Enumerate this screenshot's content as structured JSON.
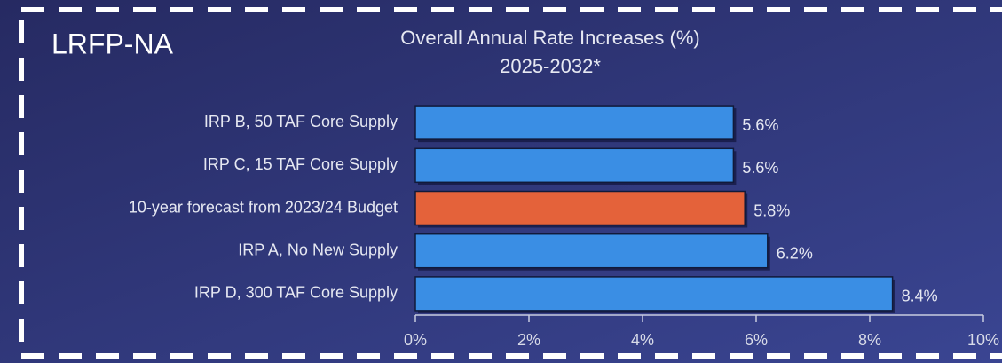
{
  "chart_data": {
    "type": "hbar",
    "annotation": "LRFP-NA",
    "title": [
      "Overall Annual Rate Increases (%)",
      "2025-2032*"
    ],
    "categories": [
      "IRP B, 50 TAF Core Supply",
      "IRP C, 15 TAF Core Supply",
      "10-year forecast from 2023/24 Budget",
      "IRP A, No New Supply",
      "IRP D, 300 TAF Core Supply"
    ],
    "values": [
      5.6,
      5.6,
      5.8,
      6.2,
      8.4
    ],
    "value_labels": [
      "5.6%",
      "5.6%",
      "5.8%",
      "6.2%",
      "8.4%"
    ],
    "colors": [
      "#3a8ee4",
      "#3a8ee4",
      "#e4623a",
      "#3a8ee4",
      "#3a8ee4"
    ],
    "xlim": [
      0,
      10
    ],
    "xticks": [
      {
        "value": 0,
        "label": "0%"
      },
      {
        "value": 2,
        "label": "2%"
      },
      {
        "value": 4,
        "label": "4%"
      },
      {
        "value": 6,
        "label": "6%"
      },
      {
        "value": 8,
        "label": "8%"
      },
      {
        "value": 10,
        "label": "10%"
      }
    ]
  }
}
